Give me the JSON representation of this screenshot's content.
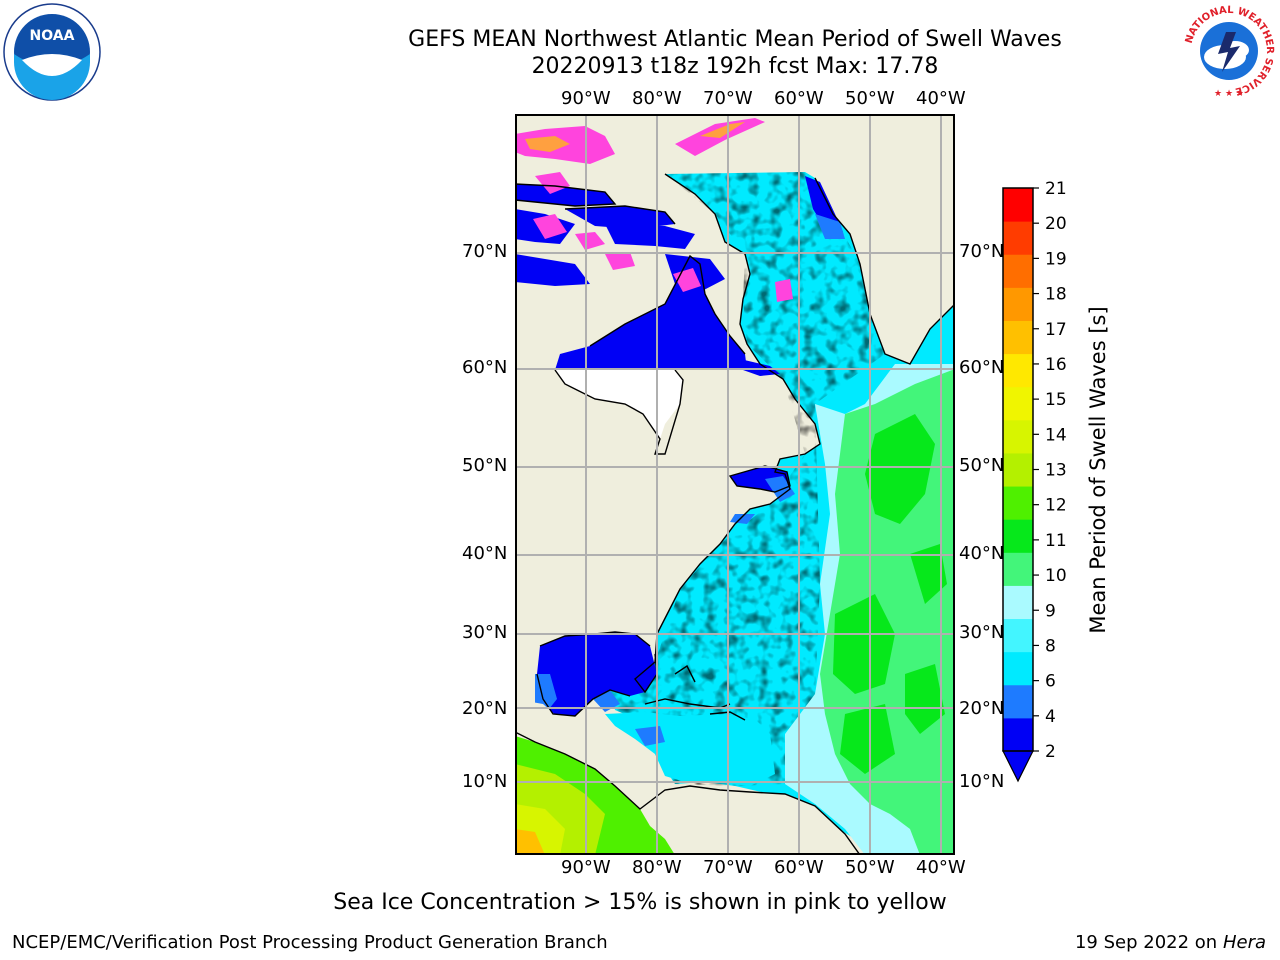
{
  "title_line1": "GEFS MEAN Northwest Atlantic Mean Period of Swell Waves",
  "title_line2": "20220913 t18z 192h fcst   Max: 17.78",
  "lon_ticks": [
    "90°W",
    "80°W",
    "70°W",
    "60°W",
    "50°W",
    "40°W"
  ],
  "lat_ticks": [
    "70°N",
    "60°N",
    "50°N",
    "40°N",
    "30°N",
    "20°N",
    "10°N"
  ],
  "colorbar": {
    "label": "Mean Period of Swell Waves [s]",
    "ticks": [
      "2",
      "4",
      "6",
      "8",
      "9",
      "10",
      "11",
      "12",
      "13",
      "14",
      "15",
      "16",
      "17",
      "18",
      "19",
      "20",
      "21"
    ],
    "colors": [
      "#0000f5",
      "#1e7bff",
      "#00eaff",
      "#43f5ff",
      "#aafaff",
      "#43f57a",
      "#06e81b",
      "#4ff000",
      "#b4f000",
      "#d7f500",
      "#f0f500",
      "#ffe800",
      "#ffc000",
      "#ff9800",
      "#ff6e00",
      "#ff3c00",
      "#ff0000"
    ],
    "under_color": "#0000f5"
  },
  "caption": "Sea Ice Concentration > 15% is shown in pink to yellow",
  "footer_left": "NCEP/EMC/Verification Post Processing Product Generation Branch",
  "footer_date": "19 Sep 2022 on",
  "footer_host": "Hera",
  "logos": {
    "noaa_text": "NOAA",
    "noaa_ring": "NATIONAL OCEANIC AND ATMOSPHERIC ADMINISTRATION · U.S. DEPARTMENT OF COMMERCE",
    "nws_ring": "NATIONAL WEATHER SERVICE"
  },
  "colors": {
    "land": "#efeedd",
    "grid": "#b0b0b0",
    "ice_pink": "#ff44dd",
    "ice_orange": "#ffa040"
  }
}
